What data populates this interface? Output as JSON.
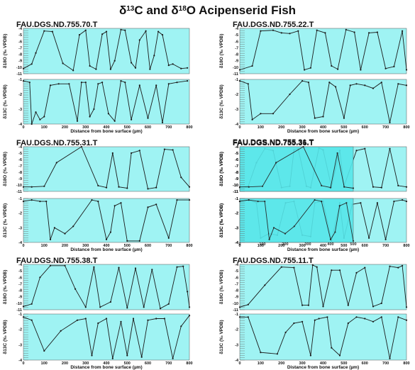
{
  "figure": {
    "title": "δ13C and δ18O Acipenserid Fish",
    "title_parts": {
      "d1": "δ",
      "sup1": "13",
      "mid": "C and δ",
      "sup2": "18",
      "tail": "O Acipenserid Fish"
    }
  },
  "colors": {
    "plot_bg": "#9ff3f3",
    "line": "#1a1a1a",
    "overlay_bg": "#56e6ea"
  },
  "chart_data": [
    {
      "type": "line",
      "title": "FAU.DGS.ND.755.70.T",
      "xlabel": "Distance from bone surface (µm)",
      "x_ticks": [
        "0",
        "100",
        "200",
        "300",
        "400",
        "500",
        "600",
        "700",
        "800"
      ],
      "xlim": [
        0,
        800
      ],
      "panels": [
        {
          "ylabel": "δ18O (‰ VPDB)",
          "ylim": [
            -11,
            -4
          ],
          "y_ticks": [
            "-4",
            "-5",
            "-6",
            "-7",
            "-8",
            "-9",
            "-10",
            "-11"
          ],
          "x": [
            0,
            40,
            60,
            100,
            140,
            190,
            240,
            270,
            300,
            320,
            350,
            380,
            400,
            420,
            440,
            470,
            490,
            520,
            540,
            560,
            590,
            610,
            630,
            650,
            670,
            700,
            720,
            760,
            790
          ],
          "y": [
            -10.2,
            -9.5,
            -7.8,
            -4.4,
            -4.5,
            -9.4,
            -10.5,
            -5.0,
            -4.3,
            -9.8,
            -10.3,
            -4.9,
            -4.5,
            -10.3,
            -9.0,
            -4.2,
            -4.3,
            -9.3,
            -10.1,
            -5.8,
            -4.4,
            -10.3,
            -8.2,
            -4.5,
            -5.0,
            -9.7,
            -9.5,
            -10.2,
            -10.1
          ]
        },
        {
          "ylabel": "δ13C (‰ VPDB)",
          "ylim": [
            -4,
            -1
          ],
          "y_ticks": [
            "-1",
            "-2",
            "-3",
            "-4"
          ],
          "x": [
            0,
            30,
            40,
            60,
            80,
            100,
            130,
            170,
            220,
            260,
            280,
            300,
            320,
            340,
            360,
            380,
            410,
            440,
            470,
            490,
            520,
            560,
            600,
            640,
            670,
            700,
            740,
            790
          ],
          "y": [
            -1.1,
            -1.2,
            -4.0,
            -3.2,
            -3.7,
            -3.5,
            -1.4,
            -1.3,
            -1.3,
            -3.8,
            -1.2,
            -1.2,
            -3.5,
            -3.0,
            -1.3,
            -1.2,
            -3.3,
            -3.8,
            -1.1,
            -1.2,
            -3.7,
            -1.4,
            -3.6,
            -1.4,
            -3.9,
            -1.3,
            -1.2,
            -1.1
          ]
        }
      ]
    },
    {
      "type": "line",
      "title": "FAU.DGS.ND.755.22.T",
      "xlabel": "Distance from bone surface (µm)",
      "x_ticks": [
        "0",
        "100",
        "200",
        "300",
        "400",
        "500",
        "600",
        "700",
        "800"
      ],
      "xlim": [
        0,
        800
      ],
      "panels": [
        {
          "ylabel": "δ18O (‰ VPDB)",
          "ylim": [
            -11,
            -4
          ],
          "y_ticks": [
            "-4",
            "-5",
            "-6",
            "-7",
            "-8",
            "-9",
            "-10",
            "-11"
          ],
          "x": [
            0,
            60,
            100,
            160,
            200,
            240,
            280,
            310,
            340,
            370,
            410,
            440,
            470,
            510,
            550,
            580,
            620,
            660,
            700,
            740,
            780,
            800
          ],
          "y": [
            -10.4,
            -9.8,
            -4.4,
            -4.3,
            -4.7,
            -4.8,
            -4.4,
            -10.4,
            -10.1,
            -4.3,
            -4.7,
            -9.8,
            -10.3,
            -4.2,
            -4.6,
            -10.4,
            -4.7,
            -4.6,
            -10.2,
            -9.9,
            -4.4,
            -10.4
          ]
        },
        {
          "ylabel": "δ13C (‰ VPDB)",
          "ylim": [
            -4,
            -1
          ],
          "y_ticks": [
            "-1",
            "-2",
            "-3",
            "-4"
          ],
          "x": [
            0,
            40,
            60,
            100,
            160,
            240,
            300,
            330,
            360,
            400,
            430,
            460,
            500,
            530,
            560,
            600,
            640,
            680,
            720,
            760,
            800
          ],
          "y": [
            -1.1,
            -1.3,
            -3.7,
            -3.3,
            -3.3,
            -2.0,
            -1.1,
            -1.2,
            -3.6,
            -3.5,
            -1.2,
            -1.5,
            -3.6,
            -1.4,
            -1.3,
            -1.4,
            -1.6,
            -1.2,
            -3.9,
            -1.3,
            -1.4
          ]
        }
      ]
    },
    {
      "type": "line",
      "title": "FAU.DGS.ND.755.31.T",
      "xlabel": "Distance from bone surface (µm)",
      "x_ticks": [
        "0",
        "100",
        "200",
        "300",
        "400",
        "500",
        "600",
        "700",
        "800"
      ],
      "xlim": [
        0,
        800
      ],
      "panels": [
        {
          "ylabel": "δ18O (‰ VPDB)",
          "ylim": [
            -11,
            -4
          ],
          "y_ticks": [
            "-4",
            "-5",
            "-6",
            "-7",
            "-8",
            "-9",
            "-10",
            "-11"
          ],
          "x": [
            0,
            40,
            100,
            160,
            280,
            360,
            400,
            430,
            460,
            500,
            520,
            560,
            600,
            640,
            680,
            720,
            760,
            800
          ],
          "y": [
            -10.3,
            -10.3,
            -10.2,
            -6.5,
            -4.0,
            -10.1,
            -10.4,
            -5.0,
            -10.3,
            -10.5,
            -5.0,
            -4.6,
            -10.6,
            -10.4,
            -4.4,
            -4.5,
            -8.8,
            -10.3
          ]
        },
        {
          "ylabel": "δ13C (‰ VPDB)",
          "ylim": [
            -4,
            -1
          ],
          "y_ticks": [
            "-1",
            "-2",
            "-3",
            "-4"
          ],
          "x": [
            0,
            40,
            80,
            110,
            130,
            150,
            200,
            240,
            330,
            360,
            400,
            420,
            440,
            470,
            500,
            560,
            600,
            640,
            700,
            740,
            800
          ],
          "y": [
            -1.2,
            -1.1,
            -1.2,
            -1.2,
            -3.8,
            -3.0,
            -3.4,
            -2.9,
            -1.1,
            -1.2,
            -3.8,
            -3.3,
            -1.5,
            -1.3,
            -3.9,
            -3.9,
            -1.6,
            -1.4,
            -3.7,
            -1.1,
            -1.1
          ]
        }
      ]
    },
    {
      "type": "line",
      "title": "FAU.DGS.ND.755.36.T",
      "overlay_title": "FAU.DGS.ND.755.31.T",
      "xlabel": "Distance from bone surface (µm)",
      "x_ticks": [
        "0",
        "100",
        "200",
        "300",
        "400",
        "500",
        "600",
        "700",
        "800"
      ],
      "xlim": [
        0,
        800
      ],
      "panels": [
        {
          "ylabel": "δ18O (‰ VPDB)",
          "ylim": [
            -11,
            -4
          ],
          "y_ticks": [
            "-4",
            "-5",
            "-6",
            "-7",
            "-8",
            "-9",
            "-10",
            "-11"
          ],
          "x": [
            0,
            40,
            80,
            120,
            160,
            200,
            240,
            260,
            280,
            320,
            340,
            380,
            400,
            440,
            480,
            500,
            560,
            600,
            640,
            680,
            720,
            760,
            800
          ],
          "y": [
            -10.4,
            -10.2,
            -6.5,
            -4.3,
            -4.6,
            -10.4,
            -10.2,
            -4.5,
            -4.3,
            -10.2,
            -10.4,
            -4.2,
            -4.5,
            -10.3,
            -4.6,
            -10.2,
            -4.6,
            -4.3,
            -10.3,
            -10.4,
            -4.3,
            -10.1,
            -10.3
          ]
        },
        {
          "ylabel": "δ13C (‰ VPDB)",
          "ylim": [
            -4,
            -1
          ],
          "y_ticks": [
            "-1",
            "-2",
            "-3",
            "-4"
          ],
          "x": [
            0,
            40,
            80,
            100,
            140,
            180,
            220,
            260,
            300,
            340,
            360,
            400,
            440,
            480,
            500,
            540,
            580,
            620,
            660,
            700,
            740,
            780,
            800
          ],
          "y": [
            -1.2,
            -1.1,
            -1.3,
            -3.7,
            -3.4,
            -3.5,
            -1.3,
            -1.2,
            -3.5,
            -3.6,
            -1.3,
            -1.2,
            -3.9,
            -1.3,
            -3.7,
            -1.4,
            -1.3,
            -3.7,
            -1.3,
            -3.8,
            -1.2,
            -1.1,
            -1.2
          ]
        }
      ],
      "overlay_panels": [
        {
          "x": [
            0,
            40,
            100,
            160,
            280,
            360,
            400,
            430,
            460,
            500
          ],
          "y": [
            -10.3,
            -10.3,
            -10.2,
            -6.5,
            -4.0,
            -10.1,
            -10.4,
            -5.0,
            -10.3,
            -10.5
          ]
        },
        {
          "x": [
            0,
            40,
            80,
            110,
            130,
            150,
            200,
            240,
            330,
            360,
            400,
            420,
            440,
            470,
            500
          ],
          "y": [
            -1.2,
            -1.1,
            -1.2,
            -1.2,
            -3.8,
            -3.0,
            -3.4,
            -2.9,
            -1.1,
            -1.2,
            -3.8,
            -3.3,
            -1.5,
            -1.3,
            -3.9
          ]
        }
      ]
    },
    {
      "type": "line",
      "title": "FAU.DGS.ND.755.38.T",
      "xlabel": "Distance from bone surface (µm)",
      "x_ticks": [
        "0",
        "100",
        "200",
        "300",
        "400",
        "500",
        "600",
        "700",
        "800"
      ],
      "xlim": [
        0,
        800
      ],
      "panels": [
        {
          "ylabel": "δ18O (‰ VPDB)",
          "ylim": [
            -11,
            -4
          ],
          "y_ticks": [
            "-4",
            "-5",
            "-6",
            "-7",
            "-8",
            "-9",
            "-10",
            "-11"
          ],
          "x": [
            0,
            40,
            80,
            130,
            200,
            250,
            300,
            340,
            370,
            420,
            460,
            500,
            540,
            580,
            620,
            660,
            700,
            740,
            770,
            790,
            800
          ],
          "y": [
            -10.5,
            -10.1,
            -6.0,
            -4.2,
            -4.2,
            -7.8,
            -10.6,
            -4.4,
            -10.6,
            -9.8,
            -4.5,
            -10.7,
            -4.6,
            -10.6,
            -4.8,
            -10.8,
            -10.1,
            -4.4,
            -4.3,
            -8.2,
            -10.6
          ]
        },
        {
          "ylabel": "δ13C (‰ VPDB)",
          "ylim": [
            -4,
            -1
          ],
          "y_ticks": [
            "-1",
            "-2",
            "-3",
            "-4"
          ],
          "x": [
            0,
            40,
            100,
            180,
            260,
            300,
            330,
            360,
            400,
            430,
            470,
            500,
            530,
            570,
            600,
            640,
            680,
            720,
            760,
            800
          ],
          "y": [
            -1.2,
            -1.4,
            -3.4,
            -2.1,
            -1.4,
            -1.3,
            -3.7,
            -1.6,
            -1.3,
            -3.9,
            -1.5,
            -3.7,
            -1.3,
            -3.8,
            -1.4,
            -1.3,
            -1.3,
            -3.9,
            -1.8,
            -1.1
          ]
        }
      ]
    },
    {
      "type": "line",
      "title": "FAU.DGS.ND.755.11.T",
      "xlabel": "Distance from bone surface (µm)",
      "x_ticks": [
        "0",
        "100",
        "200",
        "300",
        "400",
        "500",
        "600",
        "700",
        "800"
      ],
      "xlim": [
        0,
        800
      ],
      "panels": [
        {
          "ylabel": "δ18O (‰ VPDB)",
          "ylim": [
            -11,
            -4
          ],
          "y_ticks": [
            "-4",
            "-5",
            "-6",
            "-7",
            "-8",
            "-9",
            "-10",
            "-11"
          ],
          "x": [
            0,
            40,
            120,
            200,
            260,
            300,
            330,
            350,
            370,
            400,
            440,
            480,
            520,
            560,
            600,
            640,
            680,
            720,
            760,
            780,
            800
          ],
          "y": [
            -10.6,
            -10.2,
            -7.2,
            -4.4,
            -4.5,
            -10.3,
            -10.3,
            -4.1,
            -4.4,
            -10.5,
            -4.9,
            -4.9,
            -10.3,
            -5.3,
            -4.5,
            -10.5,
            -10.0,
            -4.3,
            -4.5,
            -4.2,
            -10.6
          ]
        },
        {
          "ylabel": "δ13C (‰ VPDB)",
          "ylim": [
            -4,
            -1
          ],
          "y_ticks": [
            "-1",
            "-2",
            "-3",
            "-4"
          ],
          "x": [
            0,
            40,
            100,
            180,
            220,
            260,
            300,
            340,
            360,
            380,
            420,
            440,
            480,
            520,
            560,
            600,
            640,
            680,
            720,
            760,
            800
          ],
          "y": [
            -1.2,
            -1.2,
            -3.5,
            -3.6,
            -2.2,
            -1.6,
            -1.5,
            -3.7,
            -1.4,
            -1.3,
            -1.2,
            -3.2,
            -3.7,
            -1.6,
            -1.2,
            -1.3,
            -1.5,
            -1.2,
            -3.9,
            -1.2,
            -1.4
          ]
        }
      ]
    }
  ]
}
